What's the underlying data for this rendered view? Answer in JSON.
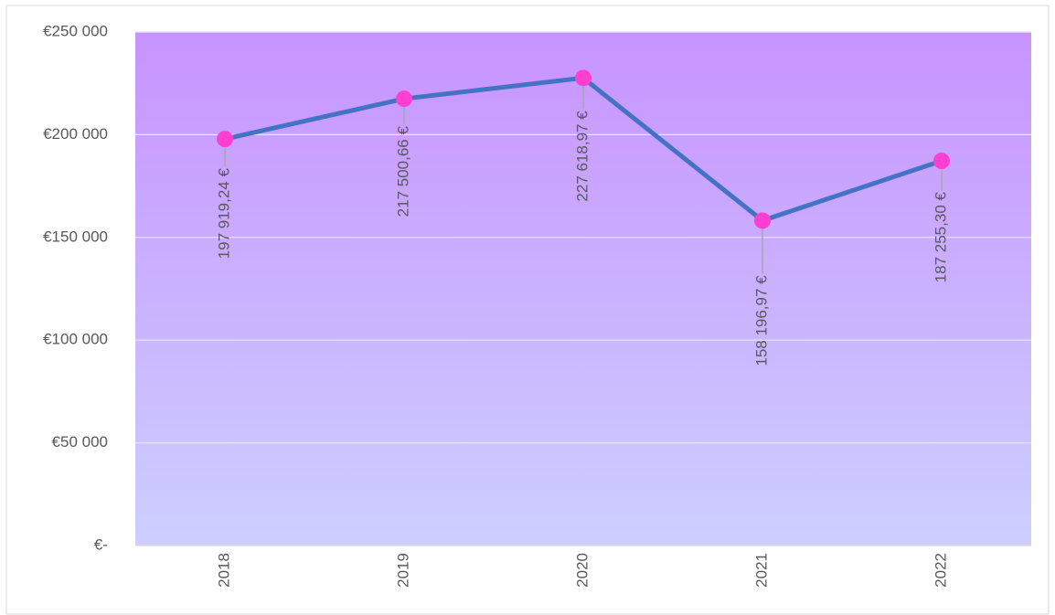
{
  "chart_data": {
    "type": "line",
    "categories": [
      "2018",
      "2019",
      "2020",
      "2021",
      "2022"
    ],
    "series": [
      {
        "color": "#4472c4",
        "marker_color": "#ff3fcf",
        "values": [
          197919.24,
          217500.66,
          227618.97,
          158196.97,
          187255.3
        ],
        "value_labels": [
          "197 919,24 €",
          "217 500,66 €",
          "227 618,97 €",
          "158 196,97 €",
          "187 255,30 €"
        ]
      }
    ],
    "ylim": [
      0,
      250000
    ],
    "yticks": [
      {
        "value": 0,
        "label": "€-"
      },
      {
        "value": 50000,
        "label": "€50 000"
      },
      {
        "value": 100000,
        "label": "€100 000"
      },
      {
        "value": 150000,
        "label": "€150 000"
      },
      {
        "value": 200000,
        "label": "€200 000"
      },
      {
        "value": 250000,
        "label": "€250 000"
      }
    ],
    "grid": true
  }
}
